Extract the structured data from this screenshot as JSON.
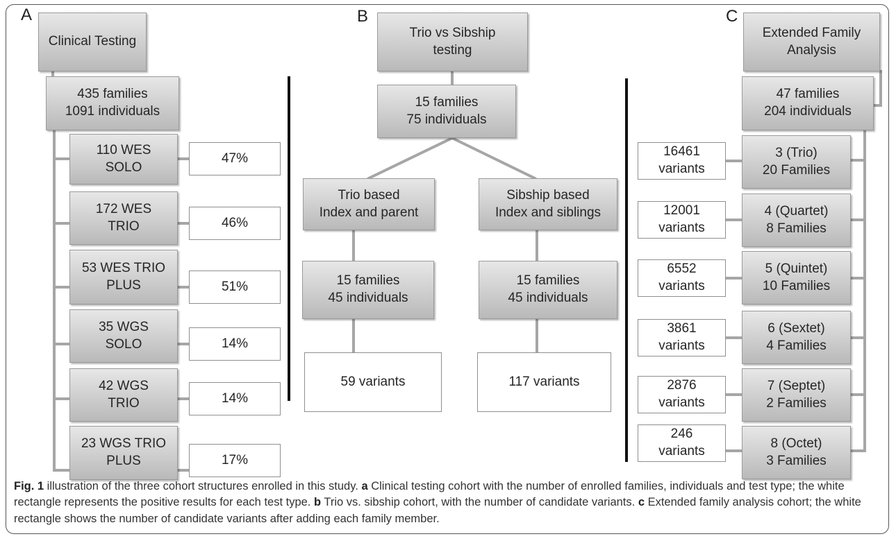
{
  "panel_a": {
    "label": "A",
    "title": "Clinical Testing",
    "summary": "435 families\n1091 individuals",
    "tests": [
      {
        "name": "110 WES\nSOLO",
        "result": "47%"
      },
      {
        "name": "172 WES\nTRIO",
        "result": "46%"
      },
      {
        "name": "53 WES TRIO\nPLUS",
        "result": "51%"
      },
      {
        "name": "35 WGS\nSOLO",
        "result": "14%"
      },
      {
        "name": "42 WGS\nTRIO",
        "result": "14%"
      },
      {
        "name": "23 WGS TRIO\nPLUS",
        "result": "17%"
      }
    ]
  },
  "panel_b": {
    "label": "B",
    "title": "Trio vs Sibship\ntesting",
    "summary": "15 families\n75 individuals",
    "left": {
      "title": "Trio based\nIndex and parent",
      "summary": "15 families\n45 individuals",
      "variants": "59 variants"
    },
    "right": {
      "title": "Sibship based\nIndex and siblings",
      "summary": "15 families\n45 individuals",
      "variants": "117 variants"
    }
  },
  "panel_c": {
    "label": "C",
    "title": "Extended Family\nAnalysis",
    "summary": "47 families\n204 individuals",
    "groups": [
      {
        "name": "3 (Trio)\n20 Families",
        "variants": "16461\nvariants"
      },
      {
        "name": "4 (Quartet)\n8 Families",
        "variants": "12001\nvariants"
      },
      {
        "name": "5 (Quintet)\n10 Families",
        "variants": "6552\nvariants"
      },
      {
        "name": "6 (Sextet)\n4 Families",
        "variants": "3861\nvariants"
      },
      {
        "name": "7 (Septet)\n2 Families",
        "variants": "2876\nvariants"
      },
      {
        "name": "8 (Octet)\n3 Families",
        "variants": "246\nvariants"
      }
    ]
  },
  "caption": {
    "fig_label": "Fig. 1",
    "intro": " illustration of the three cohort structures enrolled in this study. ",
    "a_label": "a",
    "a_text": " Clinical testing cohort with the number of enrolled families, individuals and test type; the white rectangle represents the positive results for each test type. ",
    "b_label": "b",
    "b_text": " Trio vs. sibship cohort, with the number of candidate variants. ",
    "c_label": "c",
    "c_text": " Extended family analysis cohort; the white rectangle shows the number of candidate variants after adding each family member."
  },
  "colors": {
    "box_top": "#e7e7e7",
    "box_bottom": "#b9b9b9",
    "connector": "#a6a6a6",
    "divider": "#111111"
  }
}
